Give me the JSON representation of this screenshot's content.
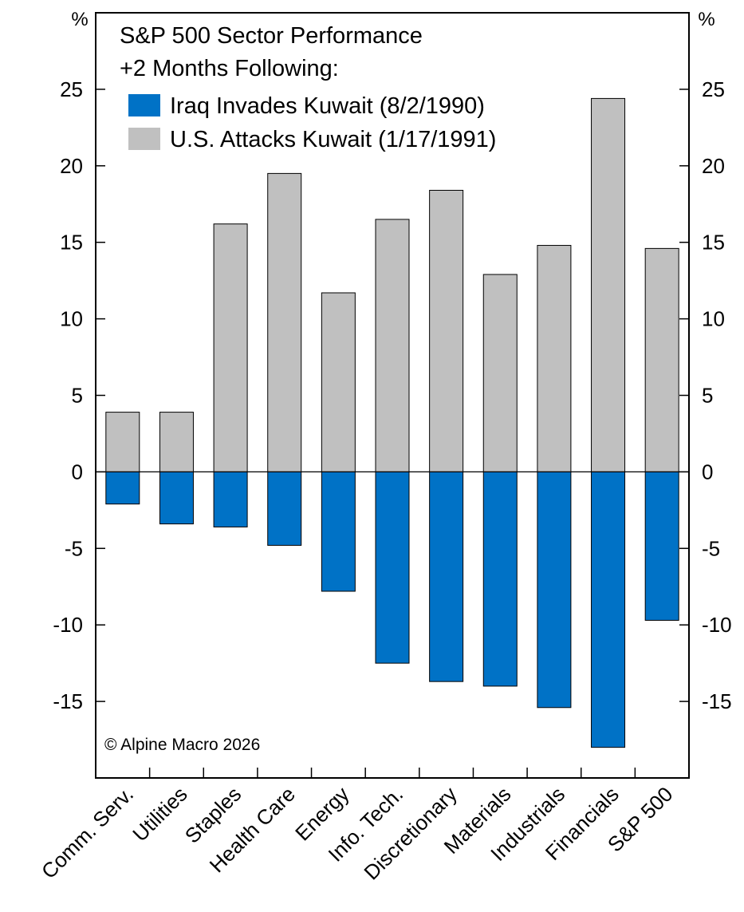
{
  "chart_data": {
    "type": "bar",
    "title": "S&P 500 Sector Performance",
    "subtitle": "+2 Months Following:",
    "y_unit_left": "%",
    "y_unit_right": "%",
    "ylim": [
      -20,
      30
    ],
    "yticks": [
      -15,
      -10,
      -5,
      0,
      5,
      10,
      15,
      20,
      25
    ],
    "grid": false,
    "legend_position": "top-left",
    "categories": [
      "Comm. Serv.",
      "Utilities",
      "Staples",
      "Health Care",
      "Energy",
      "Info. Tech.",
      "Discretionary",
      "Materials",
      "Industrials",
      "Financials",
      "S&P 500"
    ],
    "series": [
      {
        "name": "Iraq Invades Kuwait (8/2/1990)",
        "color": "#0072c6",
        "values": [
          -2.1,
          -3.4,
          -3.6,
          -4.8,
          -7.8,
          -12.5,
          -13.7,
          -14.0,
          -15.4,
          -18.0,
          -9.7
        ]
      },
      {
        "name": "U.S. Attacks Kuwait (1/17/1991)",
        "color": "#c0c0c0",
        "values": [
          3.9,
          3.9,
          16.2,
          19.5,
          11.7,
          16.5,
          18.4,
          12.9,
          14.8,
          24.4,
          14.6
        ]
      }
    ],
    "annotation": "© Alpine Macro 2026"
  }
}
